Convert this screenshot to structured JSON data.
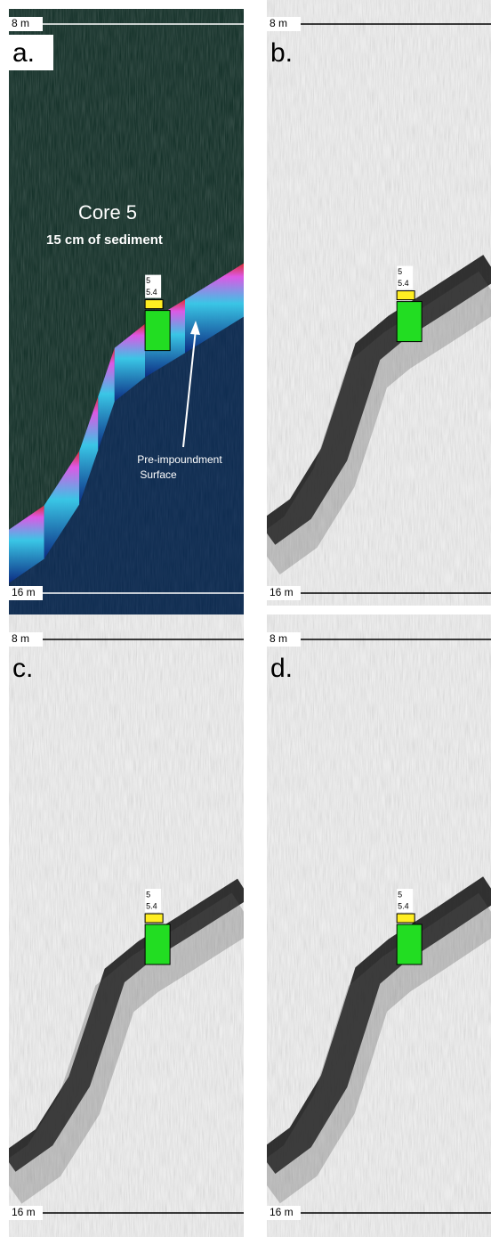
{
  "panels": [
    {
      "label": "a.",
      "top_depth": "8 m",
      "bottom_depth": "16 m",
      "core": {
        "top_label": "5",
        "bottom_label": "5.4"
      },
      "annotations": {
        "core_name": "Core 5",
        "sediment": "15 cm of sediment",
        "surface_line1": "Pre-impoundment",
        "surface_line2": "Surface"
      }
    },
    {
      "label": "b.",
      "top_depth": "8 m",
      "bottom_depth": "16 m",
      "core": {
        "top_label": "5",
        "bottom_label": "5.4"
      }
    },
    {
      "label": "c.",
      "top_depth": "8 m",
      "bottom_depth": "16 m",
      "core": {
        "top_label": "5",
        "bottom_label": "5.4"
      }
    },
    {
      "label": "d.",
      "top_depth": "8 m",
      "bottom_depth": "16 m",
      "core": {
        "top_label": "5",
        "bottom_label": "5.4"
      }
    }
  ]
}
